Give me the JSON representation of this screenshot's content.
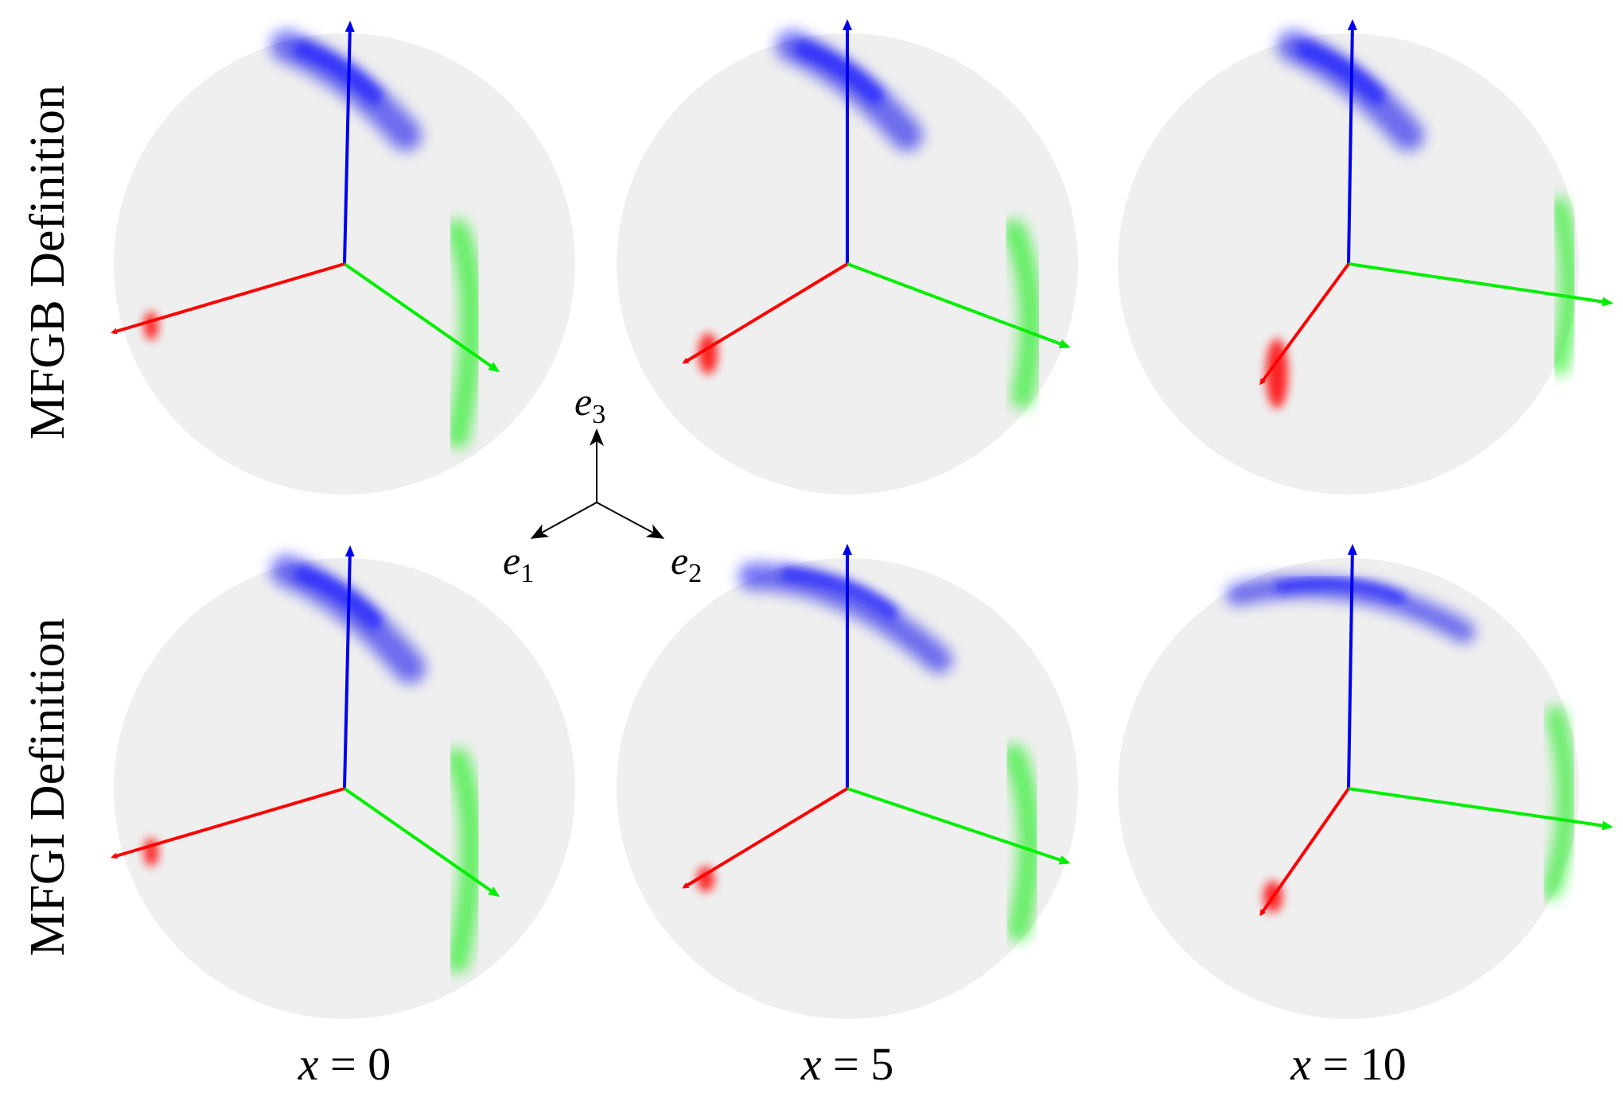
{
  "rows": [
    {
      "label": "MFGB Definition"
    },
    {
      "label": "MFGI Definition"
    }
  ],
  "columns": [
    {
      "var": "x",
      "op": " = ",
      "value": "0"
    },
    {
      "var": "x",
      "op": " = ",
      "value": "5"
    },
    {
      "var": "x",
      "op": " = ",
      "value": "10"
    }
  ],
  "reference_frame": {
    "e1": {
      "base": "e",
      "sub": "1"
    },
    "e2": {
      "base": "e",
      "sub": "2"
    },
    "e3": {
      "base": "e",
      "sub": "3"
    }
  },
  "colors": {
    "sphere": "#efefef",
    "axis_1": "#ff0000",
    "axis_2": "#00ee00",
    "axis_3": "#0000ee",
    "frame": "#000000"
  }
}
